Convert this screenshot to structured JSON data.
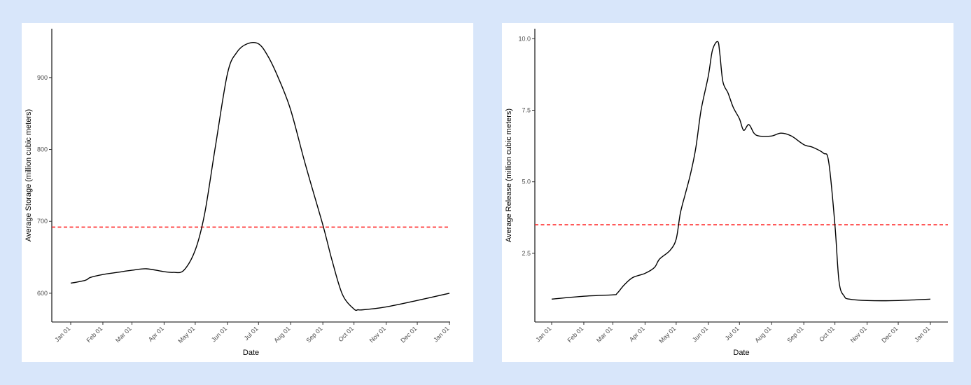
{
  "colors": {
    "background": "#d8e6fa",
    "panel": "#ffffff",
    "line": "#000000",
    "reference": "#ff2a2a"
  },
  "chart_data": [
    {
      "type": "line",
      "title": "",
      "xlabel": "Date",
      "ylabel": "Average Storage (million cubic meters)",
      "x_ticks": [
        "Jan 01",
        "Feb 01",
        "Mar 01",
        "Apr 01",
        "May 01",
        "Jun 01",
        "Jul 01",
        "Aug 01",
        "Sep 01",
        "Oct 01",
        "Nov 01",
        "Dec 01",
        "Jan 01"
      ],
      "y_ticks": [
        "600",
        "700",
        "800",
        "900"
      ],
      "xlim": [
        "2001-01-01",
        "2002-01-01"
      ],
      "ylim": [
        560,
        968
      ],
      "reference_line": {
        "y": 692,
        "style": "dashed",
        "color": "#ff2a2a"
      },
      "series": [
        {
          "x": [
            "2001-01-01",
            "2001-01-15",
            "2001-01-20",
            "2001-02-01",
            "2001-02-15",
            "2001-03-01",
            "2001-03-15",
            "2001-04-01",
            "2001-04-10",
            "2001-04-20",
            "2001-05-01",
            "2001-05-10",
            "2001-05-20",
            "2001-06-01",
            "2001-06-10",
            "2001-06-20",
            "2001-07-01",
            "2001-07-10",
            "2001-07-20",
            "2001-08-01",
            "2001-08-15",
            "2001-09-01",
            "2001-09-10",
            "2001-09-20",
            "2001-10-01",
            "2001-10-05",
            "2001-10-10",
            "2001-11-01",
            "2001-12-01",
            "2002-01-01"
          ],
          "y": [
            614,
            618,
            622,
            626,
            629,
            632,
            634,
            630,
            629,
            632,
            660,
            710,
            800,
            905,
            935,
            947,
            947,
            930,
            900,
            855,
            780,
            695,
            645,
            598,
            578,
            577,
            577,
            581,
            590,
            600
          ]
        }
      ]
    },
    {
      "type": "line",
      "title": "",
      "xlabel": "Date",
      "ylabel": "Average Release (million cubic meters)",
      "x_ticks": [
        "Jan 01",
        "Feb 01",
        "Mar 01",
        "Apr 01",
        "May 01",
        "Jun 01",
        "Jul 01",
        "Aug 01",
        "Sep 01",
        "Oct 01",
        "Nov 01",
        "Dec 01",
        "Jan 01"
      ],
      "y_ticks": [
        "2.5",
        "5.0",
        "7.5",
        "10.0"
      ],
      "xlim": [
        "2001-01-01",
        "2002-01-01"
      ],
      "ylim": [
        0.1,
        10.35
      ],
      "reference_line": {
        "y": 3.5,
        "style": "dashed",
        "color": "#ff2a2a"
      },
      "series": [
        {
          "x": [
            "2001-01-01",
            "2001-02-01",
            "2001-03-01",
            "2001-03-05",
            "2001-03-12",
            "2001-03-20",
            "2001-04-01",
            "2001-04-10",
            "2001-04-15",
            "2001-04-25",
            "2001-05-01",
            "2001-05-05",
            "2001-05-10",
            "2001-05-15",
            "2001-05-20",
            "2001-05-25",
            "2001-06-01",
            "2001-06-05",
            "2001-06-10",
            "2001-06-12",
            "2001-06-15",
            "2001-06-20",
            "2001-06-25",
            "2001-07-01",
            "2001-07-05",
            "2001-07-10",
            "2001-07-15",
            "2001-07-20",
            "2001-08-01",
            "2001-08-10",
            "2001-08-20",
            "2001-09-01",
            "2001-09-10",
            "2001-09-20",
            "2001-09-25",
            "2001-10-01",
            "2001-10-05",
            "2001-10-10",
            "2001-10-15",
            "2001-11-01",
            "2001-12-01",
            "2002-01-01"
          ],
          "y": [
            0.9,
            1.0,
            1.05,
            1.1,
            1.4,
            1.65,
            1.8,
            2.0,
            2.3,
            2.6,
            3.0,
            3.9,
            4.6,
            5.3,
            6.2,
            7.5,
            8.7,
            9.6,
            9.9,
            9.5,
            8.5,
            8.1,
            7.6,
            7.2,
            6.8,
            7.0,
            6.7,
            6.6,
            6.6,
            6.7,
            6.6,
            6.3,
            6.2,
            6.0,
            5.7,
            3.5,
            1.5,
            1.0,
            0.9,
            0.85,
            0.85,
            0.9
          ]
        }
      ]
    }
  ]
}
